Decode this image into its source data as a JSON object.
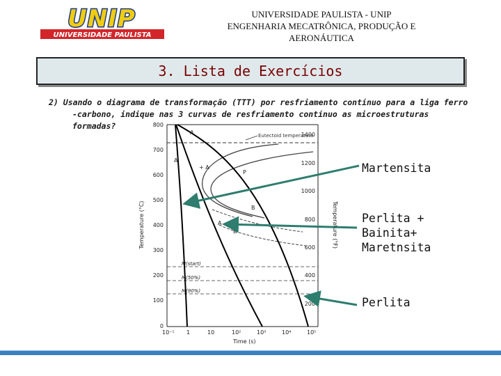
{
  "logo": {
    "wordmark": "UNIP",
    "subtitle": "UNIVERSIDADE PAULISTA",
    "colors": {
      "wordmark": "#f0cc10",
      "outline": "#1a3a8c",
      "banner": "#d2262a"
    }
  },
  "header": {
    "line1": "UNIVERSIDADE PAULISTA - UNIP",
    "line2": "ENGENHARIA MECATRÔNICA, PRODUÇÃO E",
    "line3": "AERONÁUTICA"
  },
  "title": "3. Lista de Exercícios",
  "question": {
    "line1": "2) Usando o diagrama de transformação (TTT) por resfriamento contínuo para a liga ferro",
    "line2": "-carbono, indique nas 3 curvas de resfriamento contínuo as microestruturas",
    "line3": "formadas?"
  },
  "diagram": {
    "y_left_label": "Temperature (°C)",
    "y_right_label": "Temperature (°F)",
    "x_label": "Time (s)",
    "y_left_ticks": [
      "800",
      "700",
      "600",
      "500",
      "400",
      "300",
      "200",
      "100",
      "0"
    ],
    "y_right_ticks": [
      "1400",
      "1200",
      "1000",
      "800",
      "600",
      "400",
      "200"
    ],
    "x_ticks": [
      "10⁻¹",
      "1",
      "10",
      "10²",
      "10³",
      "10⁴",
      "10⁵"
    ],
    "eutectoid_label": "Eutectoid temperature",
    "region_labels": {
      "a_top": "A",
      "a_left": "A",
      "pearlite_region": "+ A",
      "pearlite": "P",
      "bainite_upper": "B",
      "bainite_lower": "B",
      "a_small": "A"
    },
    "m_labels": {
      "m_start": "M(start)",
      "m_50": "M(50%)",
      "m_90": "M(90%)"
    },
    "arrow_color": "#2e7d6e"
  },
  "labels": {
    "martensita": "Martensita",
    "perlita_bainita_1": "Perlita +",
    "perlita_bainita_2": "Bainita+",
    "perlita_bainita_3": "Maretnsita",
    "perlita": "Perlita"
  }
}
